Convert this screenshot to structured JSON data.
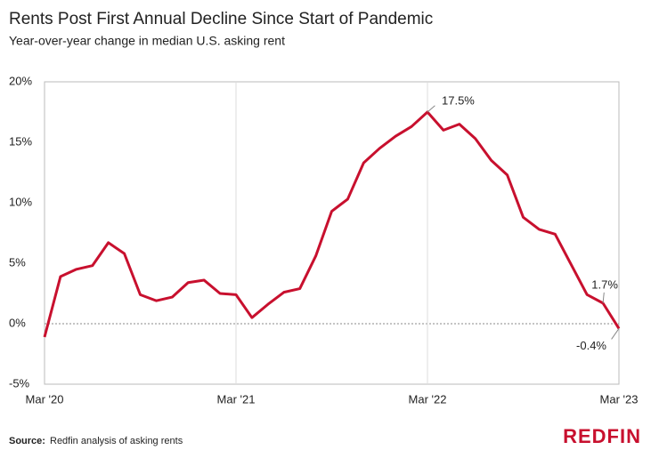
{
  "chart_data": {
    "type": "line",
    "title": "Rents Post First Annual Decline Since Start of Pandemic",
    "subtitle": "Year-over-year change in median U.S. asking rent",
    "categories": [
      "Mar '20",
      null,
      null,
      null,
      null,
      null,
      null,
      null,
      null,
      null,
      null,
      null,
      "Mar '21",
      null,
      null,
      null,
      null,
      null,
      null,
      null,
      null,
      null,
      null,
      null,
      "Mar '22",
      null,
      null,
      null,
      null,
      null,
      null,
      null,
      null,
      null,
      null,
      null,
      "Mar '23"
    ],
    "series": [
      {
        "color": "#c8102e",
        "values": [
          -1.1,
          3.9,
          4.5,
          4.8,
          6.7,
          5.8,
          2.4,
          1.9,
          2.2,
          3.4,
          3.6,
          2.5,
          2.4,
          0.5,
          1.6,
          2.6,
          2.9,
          5.6,
          9.3,
          10.3,
          13.3,
          14.5,
          15.5,
          16.3,
          17.5,
          16.0,
          16.5,
          15.3,
          13.5,
          12.3,
          8.8,
          7.8,
          7.4,
          4.9,
          2.4,
          1.7,
          -0.4
        ],
        "value_labels": [
          null,
          null,
          null,
          null,
          null,
          null,
          null,
          null,
          null,
          null,
          null,
          null,
          null,
          null,
          null,
          null,
          null,
          null,
          null,
          null,
          null,
          null,
          null,
          null,
          "17.5%",
          null,
          null,
          null,
          null,
          null,
          null,
          null,
          null,
          null,
          null,
          "1.7%",
          "-0.4%"
        ]
      }
    ],
    "ylim": [
      -5,
      20
    ],
    "yticks": [
      {
        "value": -5,
        "label": "-5%"
      },
      {
        "value": 0,
        "label": "0%"
      },
      {
        "value": 5,
        "label": "5%"
      },
      {
        "value": 10,
        "label": "10%"
      },
      {
        "value": 15,
        "label": "15%"
      },
      {
        "value": 20,
        "label": "20%"
      }
    ],
    "source_label": "Source:",
    "source": "Redfin analysis of asking rents",
    "logo": "REDFIN"
  }
}
